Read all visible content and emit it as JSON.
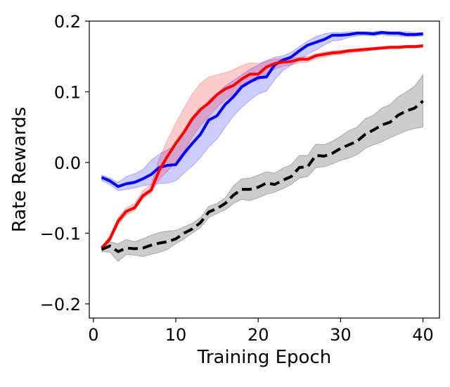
{
  "chart_data": {
    "type": "line",
    "title": "",
    "xlabel": "Training Epoch",
    "ylabel": "Rate Rewards",
    "xlim": [
      -0.5,
      42
    ],
    "ylim": [
      -0.22,
      0.2
    ],
    "xticks": [
      0,
      10,
      20,
      30,
      40
    ],
    "xtick_labels": [
      "0",
      "10",
      "20",
      "30",
      "40"
    ],
    "yticks": [
      -0.2,
      -0.1,
      0.0,
      0.1,
      0.2
    ],
    "ytick_labels": [
      "−0.2",
      "−0.1",
      "0.0",
      "0.1",
      "0.2"
    ],
    "grid": false,
    "x": [
      1,
      2,
      3,
      4,
      5,
      6,
      7,
      8,
      9,
      10,
      11,
      12,
      13,
      14,
      15,
      16,
      17,
      18,
      19,
      20,
      21,
      22,
      23,
      24,
      25,
      26,
      27,
      28,
      29,
      30,
      31,
      32,
      33,
      34,
      35,
      36,
      37,
      38,
      39,
      40
    ],
    "series": [
      {
        "name": "blue",
        "color": "#0000ff",
        "line_style": "solid",
        "values": [
          -0.021,
          -0.026,
          -0.034,
          -0.03,
          -0.028,
          -0.023,
          -0.017,
          -0.007,
          -0.004,
          -0.003,
          0.013,
          0.027,
          0.04,
          0.06,
          0.066,
          0.082,
          0.093,
          0.107,
          0.114,
          0.12,
          0.121,
          0.138,
          0.145,
          0.149,
          0.158,
          0.166,
          0.17,
          0.174,
          0.18,
          0.18,
          0.181,
          0.183,
          0.183,
          0.182,
          0.184,
          0.183,
          0.183,
          0.181,
          0.181,
          0.182
        ],
        "band_lower": [
          -0.026,
          -0.031,
          -0.04,
          -0.038,
          -0.036,
          -0.033,
          -0.031,
          -0.03,
          -0.029,
          -0.026,
          -0.015,
          -0.005,
          0.007,
          0.022,
          0.033,
          0.05,
          0.066,
          0.078,
          0.088,
          0.097,
          0.101,
          0.117,
          0.13,
          0.138,
          0.145,
          0.153,
          0.159,
          0.166,
          0.172,
          0.173,
          0.177,
          0.179,
          0.18,
          0.179,
          0.181,
          0.179,
          0.179,
          0.178,
          0.178,
          0.179
        ],
        "band_upper": [
          -0.018,
          -0.022,
          -0.028,
          -0.02,
          -0.016,
          -0.01,
          0.003,
          0.012,
          0.018,
          0.025,
          0.041,
          0.058,
          0.072,
          0.088,
          0.098,
          0.108,
          0.116,
          0.124,
          0.132,
          0.138,
          0.144,
          0.149,
          0.151,
          0.156,
          0.164,
          0.172,
          0.178,
          0.182,
          0.184,
          0.184,
          0.185,
          0.185,
          0.185,
          0.185,
          0.186,
          0.185,
          0.185,
          0.185,
          0.184,
          0.184
        ]
      },
      {
        "name": "red",
        "color": "#ff0000",
        "line_style": "solid",
        "values": [
          -0.121,
          -0.108,
          -0.083,
          -0.069,
          -0.064,
          -0.047,
          -0.039,
          -0.011,
          0.009,
          0.027,
          0.043,
          0.062,
          0.075,
          0.084,
          0.096,
          0.104,
          0.109,
          0.118,
          0.125,
          0.125,
          0.135,
          0.14,
          0.142,
          0.143,
          0.146,
          0.146,
          0.151,
          0.153,
          0.155,
          0.156,
          0.158,
          0.159,
          0.16,
          0.161,
          0.162,
          0.163,
          0.163,
          0.164,
          0.164,
          0.165
        ],
        "band_lower": [
          -0.123,
          -0.112,
          -0.088,
          -0.074,
          -0.068,
          -0.051,
          -0.043,
          -0.024,
          -0.012,
          0.001,
          0.016,
          0.036,
          0.052,
          0.065,
          0.078,
          0.089,
          0.096,
          0.106,
          0.114,
          0.116,
          0.126,
          0.132,
          0.136,
          0.138,
          0.141,
          0.142,
          0.147,
          0.149,
          0.152,
          0.153,
          0.155,
          0.156,
          0.157,
          0.159,
          0.16,
          0.161,
          0.161,
          0.162,
          0.162,
          0.163
        ],
        "band_upper": [
          -0.119,
          -0.104,
          -0.078,
          -0.064,
          -0.058,
          -0.04,
          -0.031,
          0.006,
          0.032,
          0.056,
          0.077,
          0.097,
          0.112,
          0.121,
          0.124,
          0.127,
          0.131,
          0.137,
          0.141,
          0.14,
          0.144,
          0.146,
          0.147,
          0.147,
          0.149,
          0.15,
          0.154,
          0.156,
          0.158,
          0.159,
          0.16,
          0.161,
          0.162,
          0.163,
          0.164,
          0.165,
          0.165,
          0.166,
          0.166,
          0.167
        ]
      },
      {
        "name": "black",
        "color": "#000000",
        "line_style": "dashed",
        "values": [
          -0.123,
          -0.118,
          -0.126,
          -0.121,
          -0.122,
          -0.121,
          -0.117,
          -0.114,
          -0.112,
          -0.108,
          -0.1,
          -0.094,
          -0.085,
          -0.07,
          -0.065,
          -0.058,
          -0.046,
          -0.038,
          -0.038,
          -0.035,
          -0.029,
          -0.031,
          -0.025,
          -0.02,
          -0.007,
          -0.006,
          0.01,
          0.009,
          0.013,
          0.02,
          0.025,
          0.03,
          0.04,
          0.046,
          0.053,
          0.057,
          0.067,
          0.073,
          0.077,
          0.087
        ],
        "band_lower": [
          -0.126,
          -0.127,
          -0.14,
          -0.13,
          -0.131,
          -0.133,
          -0.13,
          -0.127,
          -0.123,
          -0.115,
          -0.108,
          -0.1,
          -0.092,
          -0.078,
          -0.072,
          -0.067,
          -0.058,
          -0.052,
          -0.054,
          -0.05,
          -0.045,
          -0.042,
          -0.037,
          -0.031,
          -0.022,
          -0.02,
          -0.007,
          -0.006,
          -0.002,
          0.003,
          0.006,
          0.011,
          0.02,
          0.025,
          0.029,
          0.035,
          0.04,
          0.045,
          0.048,
          0.05
        ],
        "band_upper": [
          -0.118,
          -0.112,
          -0.115,
          -0.109,
          -0.112,
          -0.108,
          -0.103,
          -0.099,
          -0.097,
          -0.096,
          -0.091,
          -0.086,
          -0.078,
          -0.062,
          -0.058,
          -0.05,
          -0.033,
          -0.023,
          -0.022,
          -0.018,
          -0.013,
          -0.015,
          -0.008,
          -0.003,
          0.01,
          0.01,
          0.026,
          0.025,
          0.03,
          0.037,
          0.045,
          0.05,
          0.062,
          0.067,
          0.077,
          0.082,
          0.093,
          0.1,
          0.108,
          0.124
        ]
      }
    ]
  }
}
